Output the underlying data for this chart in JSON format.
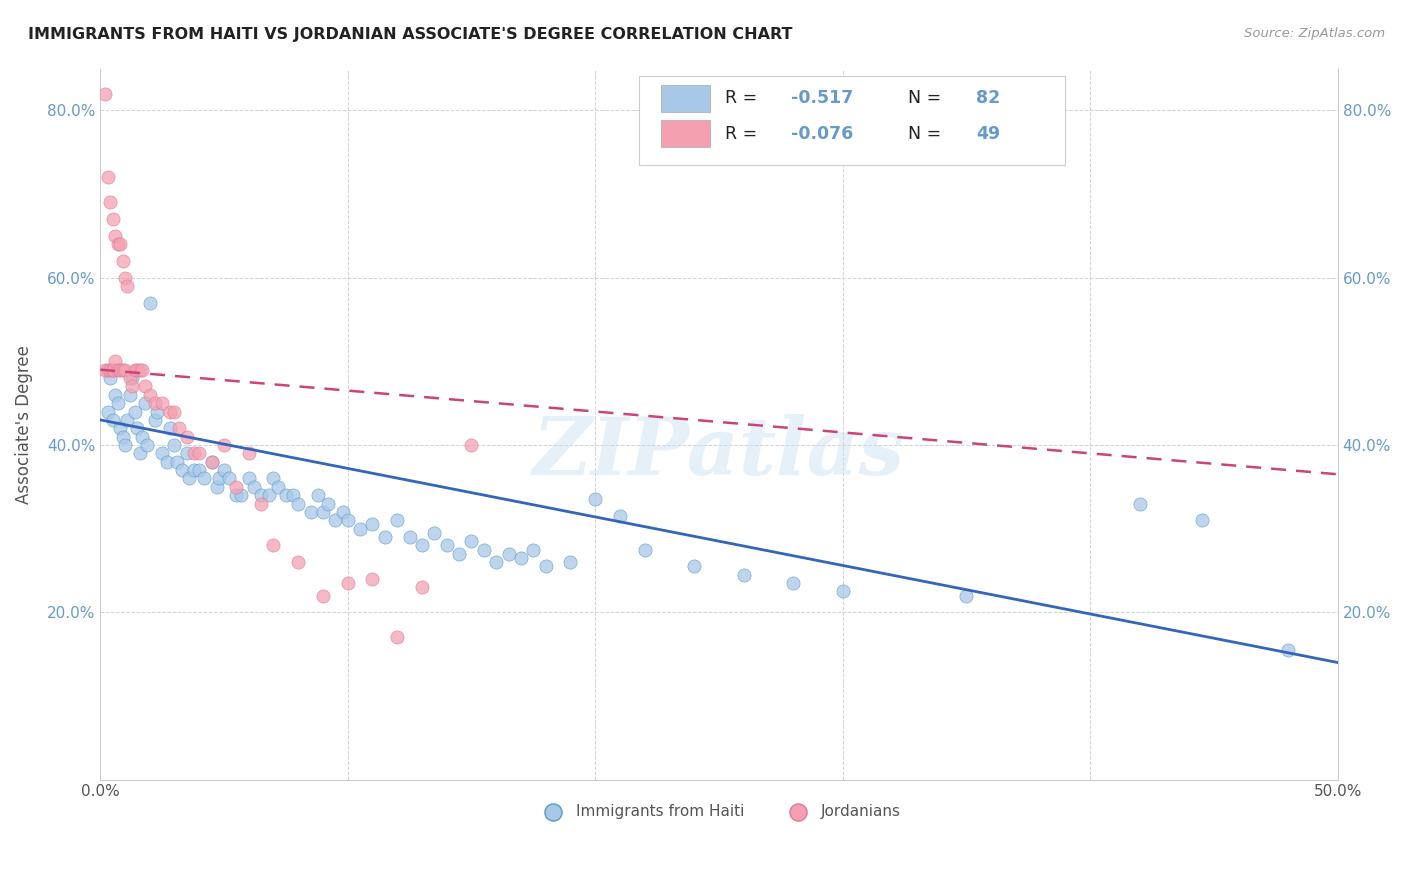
{
  "title": "IMMIGRANTS FROM HAITI VS JORDANIAN ASSOCIATE'S DEGREE CORRELATION CHART",
  "source": "Source: ZipAtlas.com",
  "ylabel": "Associate's Degree",
  "x_min": 0.0,
  "x_max": 0.5,
  "y_min": 0.0,
  "y_max": 0.85,
  "color_blue": "#a8c8e8",
  "color_blue_dark": "#5599cc",
  "color_blue_line": "#3366bb",
  "color_pink": "#f4a0b0",
  "color_pink_line": "#cc4477",
  "color_grid": "#cccccc",
  "color_tick": "#6699cc",
  "watermark": "ZIPatlas",
  "haiti_x": [
    0.003,
    0.004,
    0.005,
    0.006,
    0.007,
    0.008,
    0.009,
    0.01,
    0.011,
    0.012,
    0.013,
    0.014,
    0.015,
    0.016,
    0.017,
    0.018,
    0.019,
    0.02,
    0.022,
    0.023,
    0.025,
    0.027,
    0.028,
    0.03,
    0.031,
    0.033,
    0.035,
    0.036,
    0.038,
    0.04,
    0.042,
    0.045,
    0.047,
    0.048,
    0.05,
    0.052,
    0.055,
    0.057,
    0.06,
    0.062,
    0.065,
    0.068,
    0.07,
    0.072,
    0.075,
    0.078,
    0.08,
    0.085,
    0.088,
    0.09,
    0.092,
    0.095,
    0.098,
    0.1,
    0.105,
    0.11,
    0.115,
    0.12,
    0.125,
    0.13,
    0.135,
    0.14,
    0.145,
    0.15,
    0.155,
    0.16,
    0.165,
    0.17,
    0.175,
    0.18,
    0.19,
    0.2,
    0.21,
    0.22,
    0.24,
    0.26,
    0.28,
    0.3,
    0.35,
    0.42,
    0.445,
    0.48
  ],
  "haiti_y": [
    0.44,
    0.48,
    0.43,
    0.46,
    0.45,
    0.42,
    0.41,
    0.4,
    0.43,
    0.46,
    0.48,
    0.44,
    0.42,
    0.39,
    0.41,
    0.45,
    0.4,
    0.57,
    0.43,
    0.44,
    0.39,
    0.38,
    0.42,
    0.4,
    0.38,
    0.37,
    0.39,
    0.36,
    0.37,
    0.37,
    0.36,
    0.38,
    0.35,
    0.36,
    0.37,
    0.36,
    0.34,
    0.34,
    0.36,
    0.35,
    0.34,
    0.34,
    0.36,
    0.35,
    0.34,
    0.34,
    0.33,
    0.32,
    0.34,
    0.32,
    0.33,
    0.31,
    0.32,
    0.31,
    0.3,
    0.305,
    0.29,
    0.31,
    0.29,
    0.28,
    0.295,
    0.28,
    0.27,
    0.285,
    0.275,
    0.26,
    0.27,
    0.265,
    0.275,
    0.255,
    0.26,
    0.335,
    0.315,
    0.275,
    0.255,
    0.245,
    0.235,
    0.225,
    0.22,
    0.33,
    0.31,
    0.155
  ],
  "jordan_x": [
    0.002,
    0.002,
    0.003,
    0.003,
    0.004,
    0.004,
    0.005,
    0.005,
    0.005,
    0.006,
    0.006,
    0.007,
    0.007,
    0.008,
    0.008,
    0.009,
    0.009,
    0.01,
    0.01,
    0.011,
    0.012,
    0.013,
    0.014,
    0.015,
    0.016,
    0.017,
    0.018,
    0.02,
    0.022,
    0.025,
    0.028,
    0.03,
    0.032,
    0.035,
    0.038,
    0.04,
    0.045,
    0.05,
    0.055,
    0.06,
    0.065,
    0.07,
    0.08,
    0.09,
    0.1,
    0.11,
    0.12,
    0.13,
    0.15
  ],
  "jordan_y": [
    0.82,
    0.49,
    0.72,
    0.49,
    0.69,
    0.49,
    0.67,
    0.49,
    0.49,
    0.65,
    0.5,
    0.64,
    0.49,
    0.64,
    0.49,
    0.62,
    0.49,
    0.6,
    0.49,
    0.59,
    0.48,
    0.47,
    0.49,
    0.49,
    0.49,
    0.49,
    0.47,
    0.46,
    0.45,
    0.45,
    0.44,
    0.44,
    0.42,
    0.41,
    0.39,
    0.39,
    0.38,
    0.4,
    0.35,
    0.39,
    0.33,
    0.28,
    0.26,
    0.22,
    0.235,
    0.24,
    0.17,
    0.23,
    0.4
  ],
  "haiti_line_x0": 0.0,
  "haiti_line_x1": 0.5,
  "haiti_line_y0": 0.43,
  "haiti_line_y1": 0.14,
  "jordan_line_x0": 0.0,
  "jordan_line_x1": 0.5,
  "jordan_line_y0": 0.49,
  "jordan_line_y1": 0.365
}
